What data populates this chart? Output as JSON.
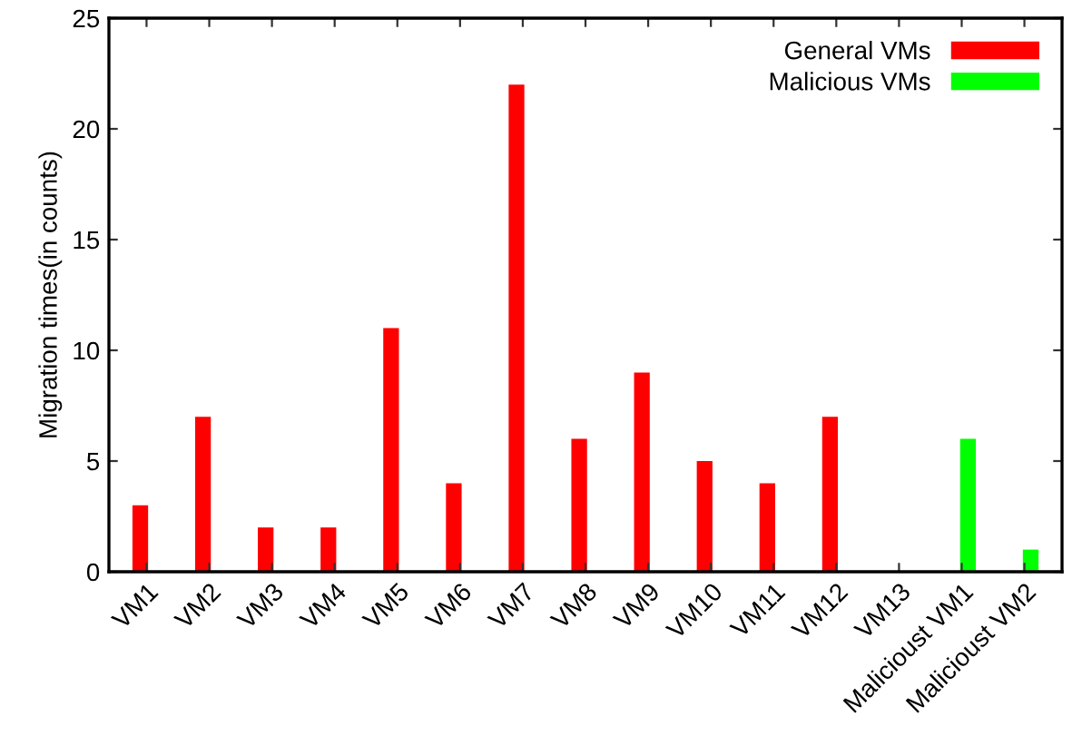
{
  "chart_data": {
    "type": "bar",
    "ylabel": "Migration times(in counts)",
    "categories": [
      "VM1",
      "VM2",
      "VM3",
      "VM4",
      "VM5",
      "VM6",
      "VM7",
      "VM8",
      "VM9",
      "VM10",
      "VM11",
      "VM12",
      "VM13",
      "Malicioust VM1",
      "Malicioust VM2"
    ],
    "series": [
      {
        "name": "General VMs",
        "color": "#ff0000",
        "values": [
          3,
          7,
          2,
          2,
          11,
          4,
          22,
          6,
          9,
          5,
          4,
          7,
          0,
          null,
          null
        ]
      },
      {
        "name": "Malicious VMs",
        "color": "#00ff00",
        "values": [
          null,
          null,
          null,
          null,
          null,
          null,
          null,
          null,
          null,
          null,
          null,
          null,
          null,
          6,
          1
        ]
      }
    ],
    "ylim": [
      0,
      25
    ],
    "yticks": [
      0,
      5,
      10,
      15,
      20,
      25
    ],
    "legend": "top right",
    "grid": false
  }
}
